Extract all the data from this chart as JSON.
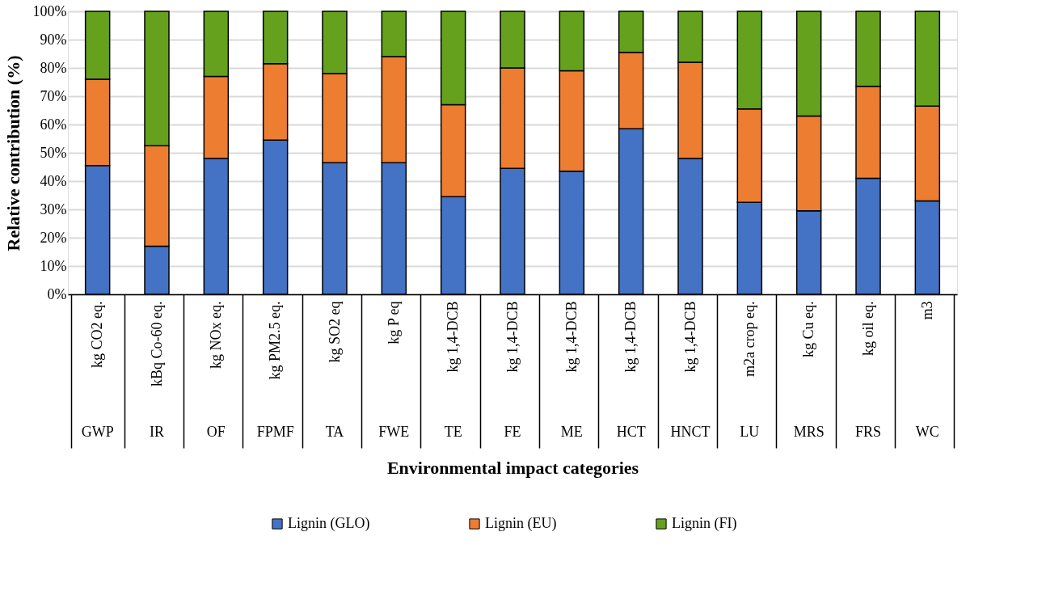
{
  "chart_data": {
    "type": "bar",
    "stacked": true,
    "xlabel": "Environmental impact categories",
    "ylabel": "Relative contribution (%)",
    "categories": [
      "kg CO2 eq.",
      "kBq Co-60 eq.",
      "kg NOx eq.",
      "kg PM2.5 eq.",
      "kg SO2 eq",
      "kg P eq",
      "kg 1,4-DCB",
      "kg 1,4-DCB",
      "kg 1,4-DCB",
      "kg 1,4-DCB",
      "kg 1,4-DCB",
      "m2a crop eq.",
      "kg Cu eq.",
      "kg oil eq.",
      "m3"
    ],
    "series": [
      {
        "name": "Lignin (GLO)",
        "color": "#4472c4",
        "values": [
          45.5,
          17,
          48,
          54.5,
          46.5,
          46.5,
          34.5,
          44.5,
          43.5,
          58.5,
          48,
          32.5,
          29.5,
          41,
          33
        ]
      },
      {
        "name": "Lignin (EU)",
        "color": "#ed7d31",
        "values": [
          30.5,
          35.5,
          29,
          27,
          31.5,
          37.5,
          32.5,
          35.5,
          35.5,
          27,
          34,
          33,
          33.5,
          32.5,
          33.5
        ]
      },
      {
        "name": "Lignin (FI)",
        "color": "#65a11c",
        "values": [
          24,
          47.5,
          23,
          18.5,
          22,
          16,
          33,
          20,
          21,
          14.5,
          18,
          34.5,
          37,
          26.5,
          33.5
        ]
      }
    ],
    "annotations": [
      "GWP",
      "IR",
      "OF",
      "FPMF",
      "TA",
      "FWE",
      "TE",
      "FE",
      "ME",
      "HCT",
      "HNCT",
      "LU",
      "MRS",
      "FRS",
      "WC"
    ],
    "ylim": [
      0,
      100
    ],
    "yticks": [
      {
        "value": 0,
        "label": "0%"
      },
      {
        "value": 10,
        "label": "10%"
      },
      {
        "value": 20,
        "label": "20%"
      },
      {
        "value": 30,
        "label": "30%"
      },
      {
        "value": 40,
        "label": "40%"
      },
      {
        "value": 50,
        "label": "50%"
      },
      {
        "value": 60,
        "label": "60%"
      },
      {
        "value": 70,
        "label": "70%"
      },
      {
        "value": 80,
        "label": "80%"
      },
      {
        "value": 90,
        "label": "90%"
      },
      {
        "value": 100,
        "label": "100%"
      }
    ],
    "grid": "y",
    "legend": "bottom"
  }
}
